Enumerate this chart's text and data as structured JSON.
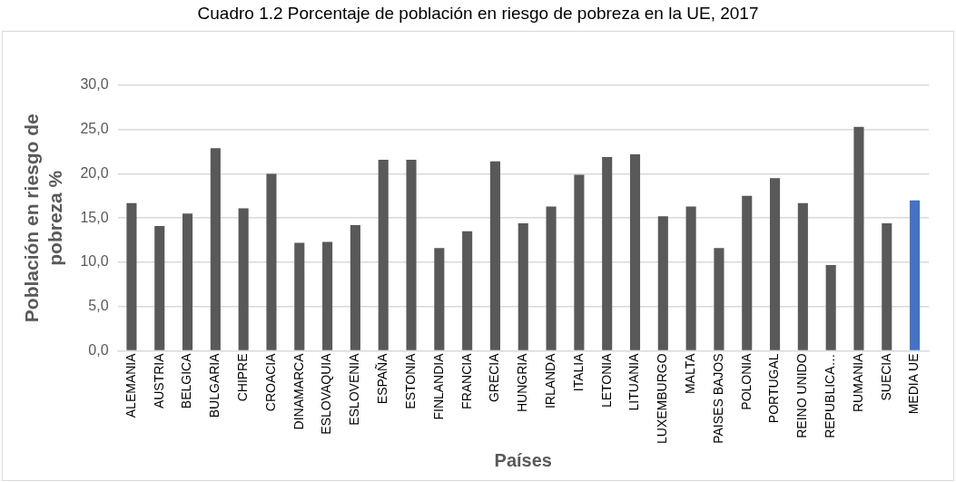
{
  "chart_data": {
    "type": "bar",
    "title": "Cuadro 1.2 Porcentaje de población en riesgo de pobreza en la UE, 2017",
    "xlabel": "Países",
    "ylabel": "Población en riesgo de pobreza %",
    "categories": [
      "ALEMANIA",
      "AUSTRIA",
      "BELGICA",
      "BULGARIA",
      "CHIPRE",
      "CROACIA",
      "DINAMARCA",
      "ESLOVAQUIA",
      "ESLOVENIA",
      "ESPAÑA",
      "ESTONIA",
      "FINLANDIA",
      "FRANCIA",
      "GRECIA",
      "HUNGRIA",
      "IRLANDA",
      "ITALIA",
      "LETONIA",
      "LITUANIA",
      "LUXEMBURGO",
      "MALTA",
      "PAISES BAJOS",
      "POLONIA",
      "PORTUGAL",
      "REINO UNIDO",
      "REPUBLICA…",
      "RUMANIA",
      "SUECIA",
      "MEDIA UE"
    ],
    "values": [
      16.7,
      14.1,
      15.5,
      22.9,
      16.1,
      20.0,
      12.2,
      12.3,
      14.2,
      21.6,
      21.6,
      11.6,
      13.5,
      21.4,
      14.4,
      16.3,
      19.9,
      21.9,
      22.2,
      15.2,
      16.3,
      11.6,
      17.5,
      19.5,
      16.7,
      9.7,
      25.3,
      14.4,
      17.0
    ],
    "colors": [
      "#595959",
      "#595959",
      "#595959",
      "#595959",
      "#595959",
      "#595959",
      "#595959",
      "#595959",
      "#595959",
      "#595959",
      "#595959",
      "#595959",
      "#595959",
      "#595959",
      "#595959",
      "#595959",
      "#595959",
      "#595959",
      "#595959",
      "#595959",
      "#595959",
      "#595959",
      "#595959",
      "#595959",
      "#595959",
      "#595959",
      "#595959",
      "#595959",
      "#4472c4"
    ],
    "ylim": [
      0,
      30
    ],
    "yticks": [
      {
        "value": 0,
        "label": "0,0"
      },
      {
        "value": 5,
        "label": "5,0"
      },
      {
        "value": 10,
        "label": "10,0"
      },
      {
        "value": 15,
        "label": "15,0"
      },
      {
        "value": 20,
        "label": "20,0"
      },
      {
        "value": 25,
        "label": "25,0"
      },
      {
        "value": 30,
        "label": "30,0"
      }
    ],
    "grid": "y",
    "legend": false
  }
}
